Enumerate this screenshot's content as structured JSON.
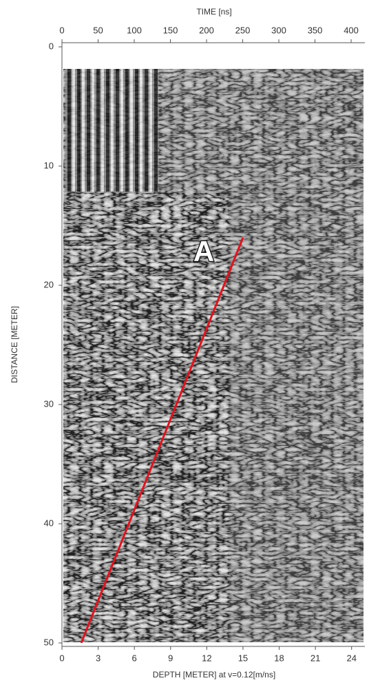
{
  "chart_data": {
    "type": "radargram",
    "x2label": "TIME [ns]",
    "xlabel": "DEPTH [METER] at v=0.12[m/ns]",
    "ylabel": "DISTANCE [METER]",
    "annotation": "A",
    "xlim": [
      0,
      25.1
    ],
    "xticks": [
      0,
      3,
      6,
      9,
      12,
      15,
      18,
      21,
      24
    ],
    "x2lim": [
      0,
      419
    ],
    "x2ticks": [
      0,
      50,
      100,
      150,
      200,
      250,
      300,
      350,
      400
    ],
    "ylim": [
      0,
      50
    ],
    "yticks": [
      0,
      10,
      20,
      30,
      40,
      50
    ],
    "y_reversed": true,
    "series": [
      {
        "color": "#e0141e",
        "x": [
          1.6,
          15
        ],
        "values": [
          50,
          16
        ]
      }
    ]
  }
}
